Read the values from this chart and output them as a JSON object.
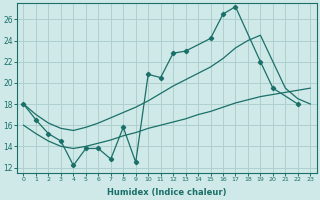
{
  "xlabel": "Humidex (Indice chaleur)",
  "bg_color": "#cfe8e8",
  "grid_color": "#b0d0d0",
  "line_color": "#1a7068",
  "xlim": [
    -0.5,
    23.5
  ],
  "ylim": [
    11.5,
    27.5
  ],
  "xticks": [
    0,
    1,
    2,
    3,
    4,
    5,
    6,
    7,
    8,
    9,
    10,
    11,
    12,
    13,
    14,
    15,
    16,
    17,
    18,
    19,
    20,
    21,
    22,
    23
  ],
  "yticks": [
    12,
    14,
    16,
    18,
    20,
    22,
    24,
    26
  ],
  "line_jagged_x": [
    0,
    1,
    2,
    3,
    4,
    5,
    6,
    7,
    8,
    9,
    10,
    11,
    12,
    13,
    15,
    16,
    17,
    19,
    20,
    22
  ],
  "line_jagged_y": [
    18.0,
    16.5,
    15.2,
    14.5,
    12.2,
    13.8,
    13.8,
    12.8,
    15.8,
    12.5,
    20.8,
    20.5,
    22.8,
    23.0,
    24.2,
    26.5,
    27.2,
    22.0,
    19.5,
    18.0
  ],
  "line_lower_x": [
    0,
    1,
    2,
    3,
    4,
    5,
    6,
    7,
    8,
    9,
    10,
    11,
    12,
    13,
    14,
    15,
    16,
    17,
    18,
    19,
    20,
    21,
    22,
    23
  ],
  "line_lower_y": [
    16.0,
    15.2,
    14.5,
    14.0,
    13.8,
    14.0,
    14.3,
    14.6,
    15.0,
    15.3,
    15.7,
    16.0,
    16.3,
    16.6,
    17.0,
    17.3,
    17.7,
    18.1,
    18.4,
    18.7,
    18.9,
    19.1,
    19.3,
    19.5
  ],
  "line_upper_x": [
    0,
    1,
    2,
    3,
    4,
    5,
    6,
    7,
    8,
    9,
    10,
    11,
    12,
    13,
    14,
    15,
    16,
    17,
    18,
    19,
    20,
    21,
    22,
    23
  ],
  "line_upper_y": [
    18.0,
    17.0,
    16.2,
    15.7,
    15.5,
    15.8,
    16.2,
    16.7,
    17.2,
    17.7,
    18.3,
    19.0,
    19.7,
    20.3,
    20.9,
    21.5,
    22.3,
    23.3,
    24.0,
    24.5,
    22.0,
    19.5,
    18.5,
    18.0
  ]
}
